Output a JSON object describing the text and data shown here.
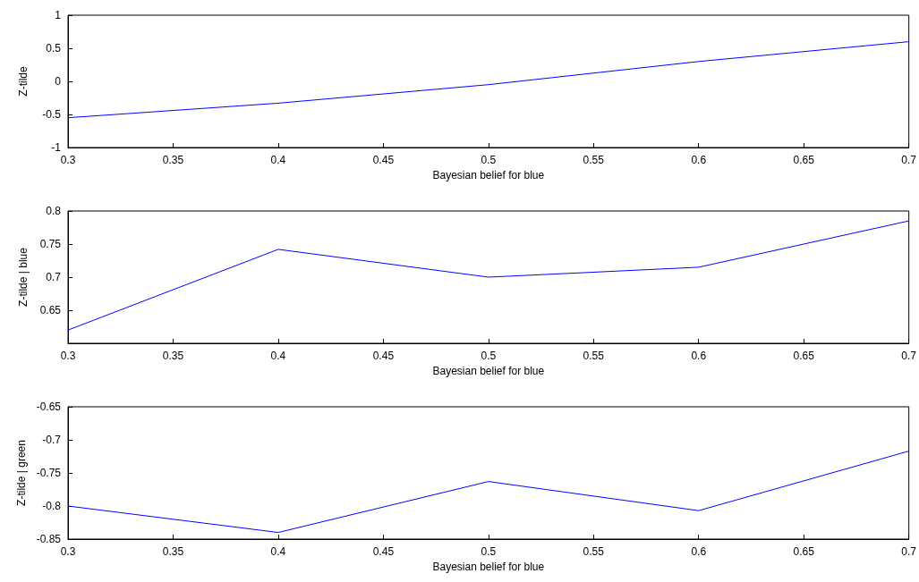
{
  "chart_data": [
    {
      "type": "line",
      "xlabel": "Bayesian belief for blue",
      "ylabel": "Z-tilde",
      "x": [
        0.3,
        0.4,
        0.5,
        0.6,
        0.7
      ],
      "series": [
        {
          "color": "#0000ff",
          "values": [
            -0.55,
            -0.33,
            -0.05,
            0.3,
            0.6
          ]
        }
      ],
      "xlim": [
        0.3,
        0.7
      ],
      "xticks": [
        0.3,
        0.35,
        0.4,
        0.45,
        0.5,
        0.55,
        0.6,
        0.65,
        0.7
      ],
      "ylim": [
        -1,
        1
      ],
      "yticks": [
        -1,
        -0.5,
        0,
        0.5,
        1
      ],
      "grid": false,
      "marker": "none",
      "line_style": "solid"
    },
    {
      "type": "line",
      "xlabel": "Bayesian belief for blue",
      "ylabel": "Z-tilde | blue",
      "x": [
        0.3,
        0.4,
        0.5,
        0.6,
        0.7
      ],
      "series": [
        {
          "color": "#0000ff",
          "values": [
            0.62,
            0.742,
            0.7,
            0.715,
            0.785
          ]
        }
      ],
      "xlim": [
        0.3,
        0.7
      ],
      "xticks": [
        0.3,
        0.35,
        0.4,
        0.45,
        0.5,
        0.55,
        0.6,
        0.65,
        0.7
      ],
      "ylim": [
        0.6,
        0.8
      ],
      "yticks": [
        0.65,
        0.7,
        0.75,
        0.8
      ],
      "grid": false,
      "marker": "none",
      "line_style": "solid"
    },
    {
      "type": "line",
      "xlabel": "Bayesian belief for blue",
      "ylabel": "Z-tilde | green",
      "x": [
        0.3,
        0.4,
        0.5,
        0.6,
        0.7
      ],
      "series": [
        {
          "color": "#0000ff",
          "values": [
            -0.8,
            -0.84,
            -0.763,
            -0.807,
            -0.717
          ]
        }
      ],
      "xlim": [
        0.3,
        0.7
      ],
      "xticks": [
        0.3,
        0.35,
        0.4,
        0.45,
        0.5,
        0.55,
        0.6,
        0.65,
        0.7
      ],
      "ylim": [
        -0.85,
        -0.65
      ],
      "yticks": [
        -0.85,
        -0.8,
        -0.75,
        -0.7,
        -0.65
      ],
      "grid": false,
      "marker": "none",
      "line_style": "solid"
    }
  ]
}
